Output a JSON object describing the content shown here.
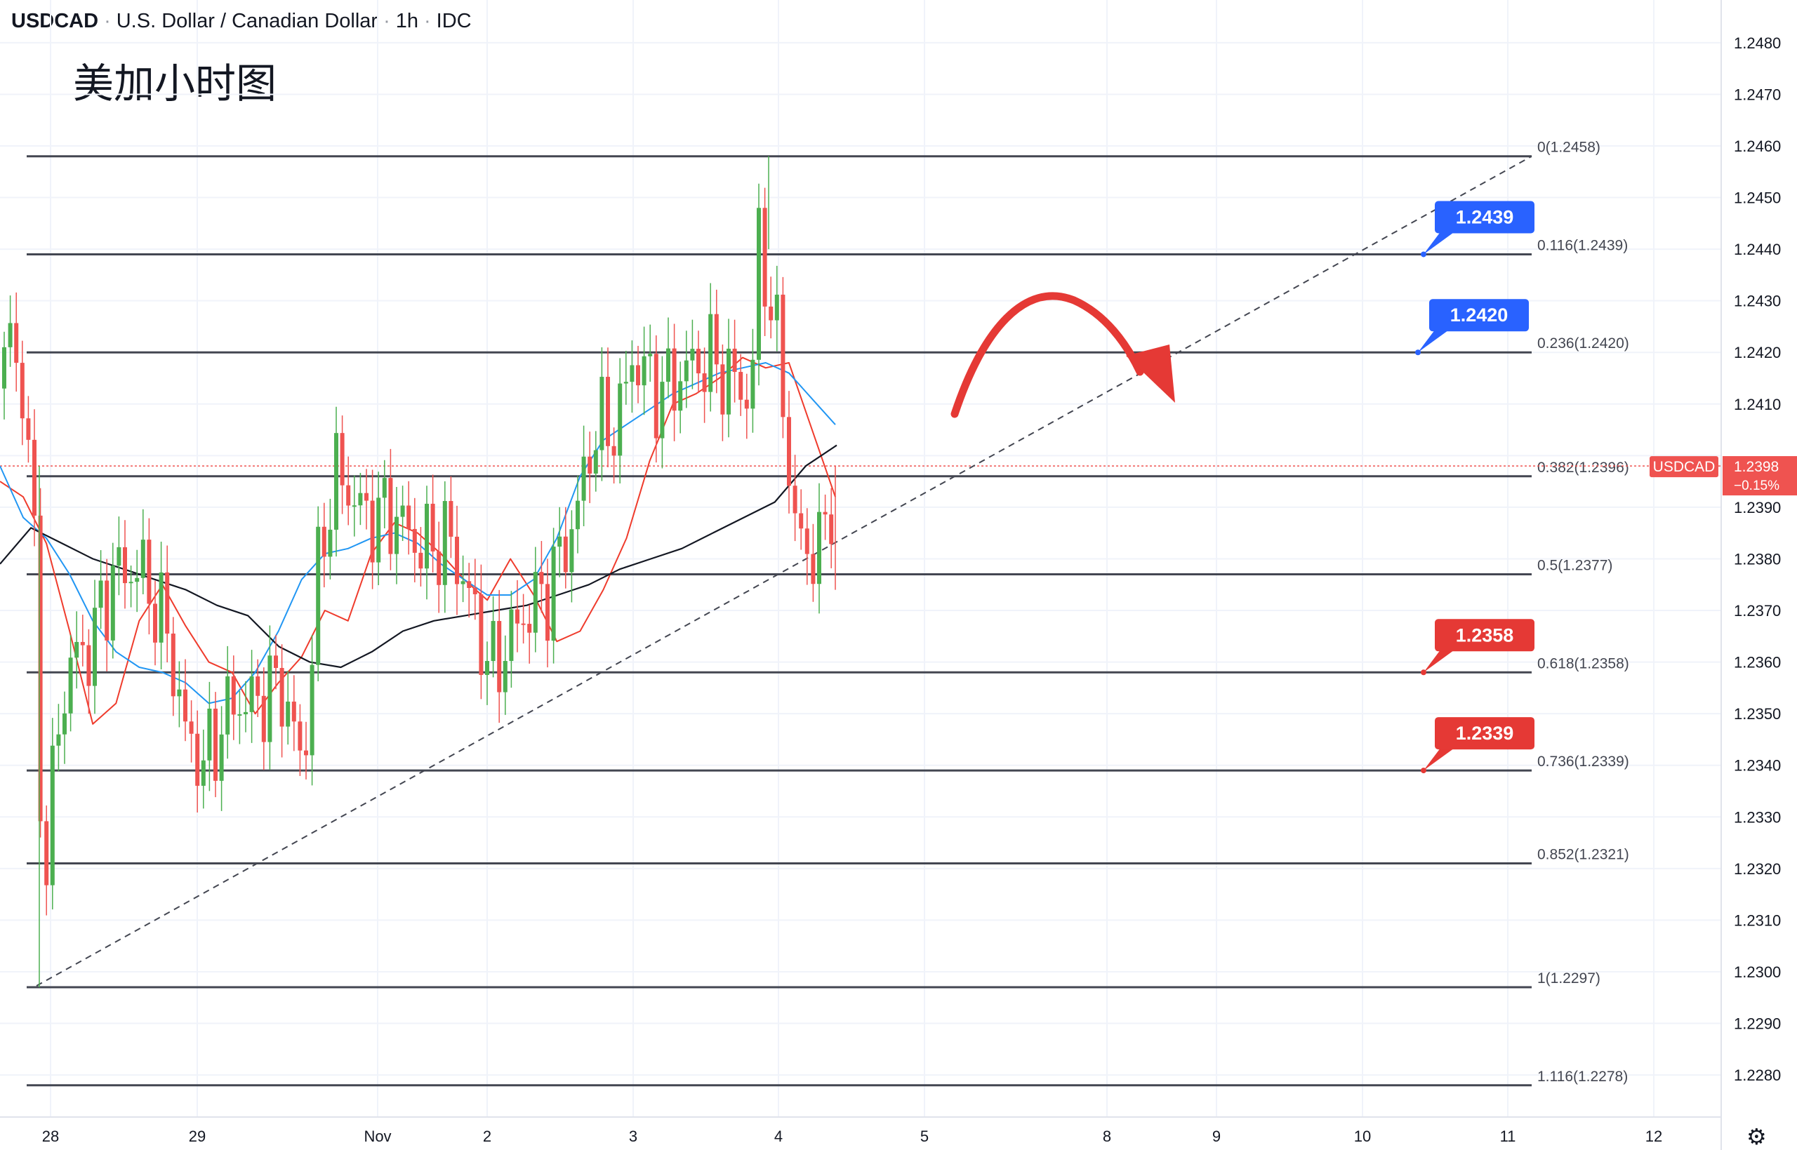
{
  "header": {
    "symbol": "USDCAD",
    "name": "U.S. Dollar / Canadian Dollar",
    "interval": "1h",
    "source": "IDC"
  },
  "annotation_title": "美加小时图",
  "settings_icon": "gear-icon",
  "colors": {
    "up": "#4caf50",
    "down": "#ef5350",
    "ma_fast": "#ef3b2c",
    "ma_mid": "#2196f3",
    "ma_slow": "#131722",
    "fib_line": "#434651",
    "label_blue": "#2962ff",
    "label_red": "#e53935",
    "arrow": "#e53935",
    "price_line": "#ef5350"
  },
  "chart_data": {
    "type": "candlestick",
    "title": "",
    "y_axis": {
      "ticks": [
        "1.2480",
        "1.2470",
        "1.2460",
        "1.2450",
        "1.2440",
        "1.2430",
        "1.2420",
        "1.2410",
        "1.2390",
        "1.2380",
        "1.2370",
        "1.2360",
        "1.2350",
        "1.2340",
        "1.2330",
        "1.2320",
        "1.2310",
        "1.2300",
        "1.2290",
        "1.2280"
      ],
      "ylim": [
        1.2271,
        1.2487
      ]
    },
    "x_axis": {
      "ticks": [
        "28",
        "29",
        "Nov",
        "2",
        "3",
        "4",
        "5",
        "8",
        "9",
        "10",
        "11",
        "12"
      ]
    },
    "current_price": {
      "symbol": "USDCAD",
      "price": "1.2398",
      "change": "−0.15%",
      "value": 1.2398
    },
    "fib_levels": [
      {
        "label": "0(1.2458)",
        "value": 1.2458
      },
      {
        "label": "0.116(1.2439)",
        "value": 1.2439
      },
      {
        "label": "0.236(1.2420)",
        "value": 1.242
      },
      {
        "label": "0.382(1.2396)",
        "value": 1.2396
      },
      {
        "label": "0.5(1.2377)",
        "value": 1.2377
      },
      {
        "label": "0.618(1.2358)",
        "value": 1.2358
      },
      {
        "label": "0.736(1.2339)",
        "value": 1.2339
      },
      {
        "label": "0.852(1.2321)",
        "value": 1.2321
      },
      {
        "label": "1(1.2297)",
        "value": 1.2297
      },
      {
        "label": "1.116(1.2278)",
        "value": 1.2278
      }
    ],
    "price_labels": [
      {
        "text": "1.2439",
        "value": 1.2439,
        "kind": "blue"
      },
      {
        "text": "1.2420",
        "value": 1.242,
        "kind": "blue"
      },
      {
        "text": "1.2358",
        "value": 1.2358,
        "kind": "red"
      },
      {
        "text": "1.2339",
        "value": 1.2339,
        "kind": "red"
      }
    ],
    "trendline": {
      "from_value": 1.2297,
      "to_value": 1.2458,
      "style": "dashed"
    },
    "arrow": {
      "direction": "curved-down"
    },
    "series": [
      {
        "name": "",
        "role": "ma_fast",
        "values": [
          1.2395,
          1.2392,
          1.2383,
          1.2366,
          1.2348,
          1.2352,
          1.2368,
          1.2375,
          1.2367,
          1.236,
          1.2358,
          1.235,
          1.2356,
          1.2361,
          1.237,
          1.2368,
          1.2381,
          1.2387,
          1.2385,
          1.2381,
          1.2376,
          1.2372,
          1.238,
          1.2373,
          1.2364,
          1.2366,
          1.2374,
          1.2384,
          1.2399,
          1.241,
          1.2412,
          1.2415,
          1.2419,
          1.2417,
          1.2418,
          1.2405,
          1.2392
        ]
      },
      {
        "name": "",
        "role": "ma_mid",
        "values": [
          1.2398,
          1.2388,
          1.2384,
          1.2377,
          1.2368,
          1.2362,
          1.2359,
          1.2358,
          1.2356,
          1.2352,
          1.2353,
          1.2358,
          1.2366,
          1.2376,
          1.2381,
          1.2382,
          1.2384,
          1.2385,
          1.2383,
          1.2379,
          1.2376,
          1.2373,
          1.2373,
          1.2376,
          1.2384,
          1.2396,
          1.2403,
          1.2406,
          1.2409,
          1.2412,
          1.2414,
          1.2416,
          1.2417,
          1.2418,
          1.2416,
          1.2411,
          1.2406
        ]
      },
      {
        "name": "",
        "role": "ma_slow",
        "values": [
          1.2379,
          1.2386,
          1.2383,
          1.238,
          1.2378,
          1.2376,
          1.2374,
          1.2371,
          1.2369,
          1.2363,
          1.236,
          1.2359,
          1.2362,
          1.2366,
          1.2368,
          1.2369,
          1.237,
          1.2371,
          1.2373,
          1.2375,
          1.2378,
          1.238,
          1.2382,
          1.2385,
          1.2388,
          1.2391,
          1.2398,
          1.2402
        ]
      }
    ]
  }
}
